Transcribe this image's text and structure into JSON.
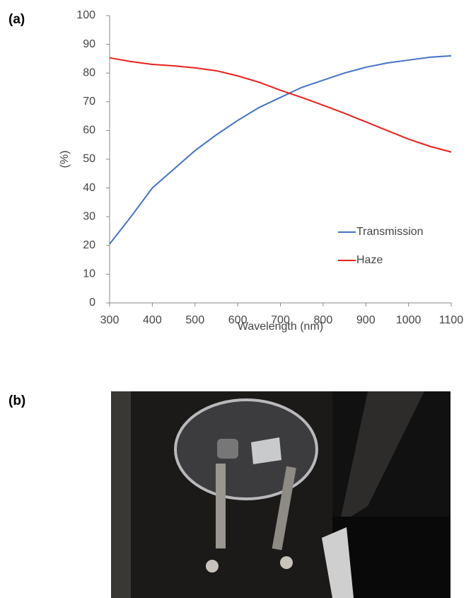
{
  "panel_labels": [
    "(a)",
    "(b)"
  ],
  "chart_data": {
    "type": "line",
    "xlabel": "Wavelength (nm)",
    "ylabel": "(%)",
    "x": [
      300,
      350,
      400,
      450,
      500,
      550,
      600,
      650,
      700,
      750,
      800,
      850,
      900,
      950,
      1000,
      1050,
      1100
    ],
    "series": [
      {
        "name": "Transmission",
        "color": "#4472c4",
        "values": [
          20.5,
          30,
          40,
          46.5,
          53,
          58.5,
          63.5,
          68,
          71.5,
          75,
          77.5,
          80,
          82,
          83.5,
          84.5,
          85.5,
          86
        ]
      },
      {
        "name": "Haze",
        "color": "#e8201c",
        "values": [
          85.3,
          84,
          83,
          82.5,
          81.8,
          80.8,
          79,
          76.8,
          74,
          71.5,
          68.8,
          66,
          63,
          60,
          57,
          54.5,
          52.5
        ]
      }
    ],
    "xlim": [
      300,
      1100
    ],
    "xticks": [
      300,
      400,
      500,
      600,
      700,
      800,
      900,
      1000,
      1100
    ],
    "ylim": [
      0,
      100
    ],
    "yticks": [
      0,
      10,
      20,
      30,
      40,
      50,
      60,
      70,
      80,
      90,
      100
    ],
    "legend": "right"
  }
}
